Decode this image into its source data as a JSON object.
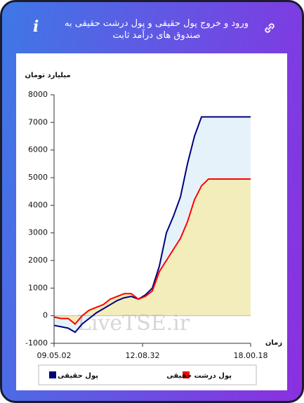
{
  "chart_data": {
    "type": "area-line",
    "title": "ورود و خروج پول حقیقی و پول درشت حقیقی به صندوق های درآمد ثابت",
    "ylabel": "میلیارد تومان",
    "xlabel": "زمان",
    "watermark": "LiveTSE.ir",
    "x": [
      0,
      1,
      2,
      3,
      4,
      5,
      6,
      7,
      8,
      9,
      10,
      11,
      12,
      13,
      14,
      15,
      16,
      17,
      18,
      19,
      20,
      21,
      22,
      23,
      24,
      25,
      26,
      27,
      28
    ],
    "xlim": [
      0,
      28
    ],
    "xticks": [
      {
        "value": 0,
        "label": "09.05.02"
      },
      {
        "value": 12.6,
        "label": "12.08.32"
      },
      {
        "value": 28,
        "label": "18.00.18"
      }
    ],
    "ylim": [
      -1000,
      8000
    ],
    "yticks": [
      -1000,
      0,
      1000,
      2000,
      3000,
      4000,
      5000,
      6000,
      7000,
      8000
    ],
    "grid": false,
    "series": [
      {
        "name": "پول حقیقی",
        "color": "#00007f",
        "fill": "#e5f2fa",
        "values": [
          -350,
          -400,
          -450,
          -600,
          -300,
          -100,
          100,
          250,
          400,
          550,
          650,
          700,
          600,
          750,
          1000,
          1800,
          3000,
          3600,
          4300,
          5500,
          6500,
          7200,
          7200,
          7200,
          7200,
          7200,
          7200,
          7200,
          7200
        ]
      },
      {
        "name": "پول درشت حقیقی",
        "color": "#ff0000",
        "fill": "#f3edbb",
        "values": [
          -50,
          -100,
          -100,
          -300,
          0,
          200,
          300,
          400,
          600,
          700,
          800,
          800,
          600,
          700,
          900,
          1600,
          2000,
          2400,
          2800,
          3400,
          4200,
          4700,
          4950,
          4950,
          4950,
          4950,
          4950,
          4950,
          4950
        ]
      }
    ]
  }
}
